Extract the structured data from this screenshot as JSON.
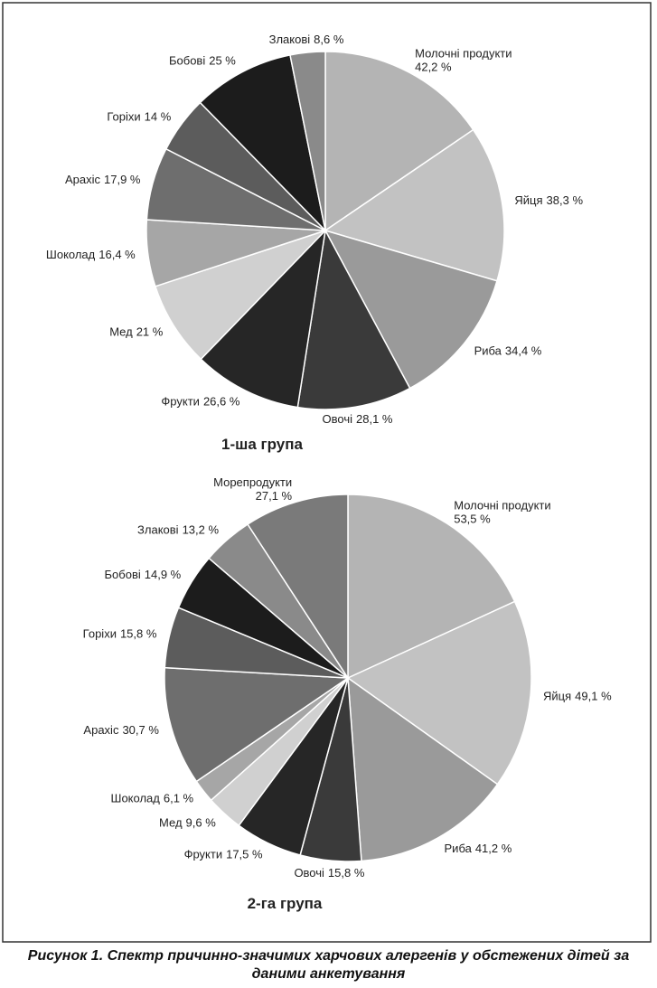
{
  "caption": "Рисунок 1. Спектр причинно-значимих харчових алергенів у обстежених дітей за даними анкетування",
  "chart_data": [
    {
      "type": "pie",
      "title": "1-ша група",
      "categories": [
        "Молочні продукти",
        "Яйця",
        "Риба",
        "Овочі",
        "Фрукти",
        "Мед",
        "Шоколад",
        "Арахіс",
        "Горіхи",
        "Бобові",
        "Злакові"
      ],
      "values": [
        42.2,
        38.3,
        34.4,
        28.1,
        26.6,
        21,
        16.4,
        17.9,
        14,
        25,
        8.6
      ],
      "value_labels": [
        "42,2 %",
        "38,3 %",
        "34,4 %",
        "28,1 %",
        "26,6 %",
        "21 %",
        "16,4 %",
        "17,9 %",
        "14 %",
        "25 %",
        "8,6 %"
      ],
      "colors": [
        "#b4b4b4",
        "#c2c2c2",
        "#9a9a9a",
        "#3a3a3a",
        "#262626",
        "#d0d0d0",
        "#a6a6a6",
        "#6e6e6e",
        "#5c5c5c",
        "#1c1c1c",
        "#8a8a8a"
      ]
    },
    {
      "type": "pie",
      "title": "2-га група",
      "categories": [
        "Молочні продукти",
        "Яйця",
        "Риба",
        "Овочі",
        "Фрукти",
        "Мед",
        "Шоколад",
        "Арахіс",
        "Горіхи",
        "Бобові",
        "Злакові",
        "Морепродукти"
      ],
      "values": [
        53.5,
        49.1,
        41.2,
        15.8,
        17.5,
        9.6,
        6.1,
        30.7,
        15.8,
        14.9,
        13.2,
        27.1
      ],
      "value_labels": [
        "53,5 %",
        "49,1 %",
        "41,2 %",
        "15,8 %",
        "17,5 %",
        "9,6 %",
        "6,1 %",
        "30,7 %",
        "15,8 %",
        "14,9 %",
        "13,2 %",
        "27,1 %"
      ],
      "colors": [
        "#b4b4b4",
        "#c2c2c2",
        "#9a9a9a",
        "#3a3a3a",
        "#262626",
        "#d0d0d0",
        "#a6a6a6",
        "#6e6e6e",
        "#5c5c5c",
        "#1c1c1c",
        "#8a8a8a",
        "#7a7a7a"
      ]
    }
  ]
}
